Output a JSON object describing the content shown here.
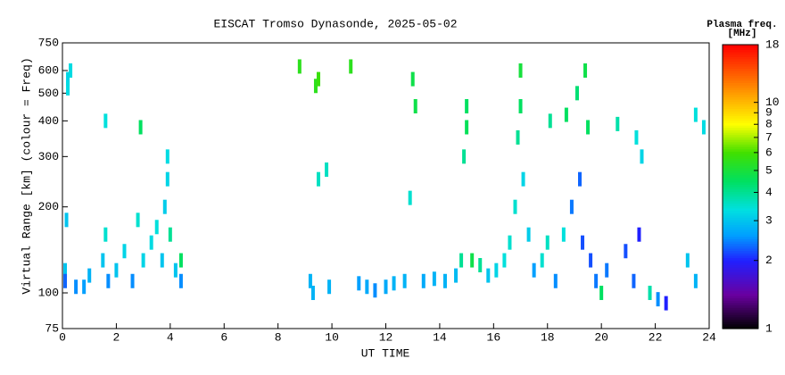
{
  "chart_data": {
    "type": "scatter",
    "title": "EISCAT Tromso Dynasonde, 2025-05-02",
    "x_label": "UT TIME",
    "y_label": "Virtual Range [km] (colour = Freq)",
    "colorbar_title": "Plasma freq.",
    "colorbar_unit": "[MHz]",
    "xlim": [
      0,
      24
    ],
    "xticks": [
      0,
      2,
      4,
      6,
      8,
      10,
      12,
      14,
      16,
      18,
      20,
      22,
      24
    ],
    "ylim": [
      75,
      750
    ],
    "yticks": [
      75,
      100,
      200,
      300,
      400,
      500,
      600,
      750
    ],
    "y_log": true,
    "clim": [
      1,
      18
    ],
    "cticks": [
      1,
      2,
      3,
      4,
      5,
      6,
      7,
      8,
      9,
      10,
      18
    ],
    "c_log": true,
    "x": [
      0.1,
      0.1,
      0.15,
      0.2,
      0.2,
      0.3,
      0.5,
      0.8,
      1.0,
      1.5,
      1.6,
      1.6,
      1.7,
      2.0,
      2.3,
      2.6,
      2.8,
      2.9,
      3.0,
      3.3,
      3.5,
      3.7,
      3.8,
      3.9,
      3.9,
      4.0,
      4.2,
      4.4,
      4.4,
      8.8,
      9.2,
      9.3,
      9.4,
      9.5,
      9.5,
      9.8,
      9.9,
      10.7,
      11.0,
      11.3,
      11.6,
      12.0,
      12.3,
      12.7,
      13.0,
      13.1,
      12.9,
      13.4,
      13.8,
      14.2,
      14.6,
      14.8,
      14.9,
      15.0,
      15.0,
      15.2,
      15.5,
      15.8,
      16.1,
      16.4,
      16.6,
      16.8,
      16.9,
      17.0,
      17.0,
      17.1,
      17.3,
      17.5,
      17.8,
      18.0,
      18.1,
      18.3,
      18.6,
      18.7,
      18.9,
      19.1,
      19.2,
      19.3,
      19.4,
      19.5,
      19.6,
      19.8,
      20.0,
      20.2,
      20.6,
      20.9,
      21.2,
      21.3,
      21.4,
      21.5,
      21.8,
      22.1,
      22.4,
      23.2,
      23.5,
      23.5,
      23.8
    ],
    "y": [
      120,
      110,
      180,
      560,
      520,
      600,
      105,
      105,
      115,
      130,
      160,
      400,
      110,
      120,
      140,
      110,
      180,
      380,
      130,
      150,
      170,
      130,
      200,
      300,
      250,
      160,
      120,
      110,
      130,
      620,
      110,
      100,
      530,
      560,
      250,
      270,
      105,
      620,
      108,
      105,
      102,
      105,
      108,
      110,
      560,
      450,
      215,
      110,
      112,
      110,
      115,
      130,
      300,
      450,
      380,
      130,
      125,
      115,
      120,
      130,
      150,
      200,
      350,
      450,
      600,
      250,
      160,
      120,
      130,
      150,
      400,
      110,
      160,
      420,
      200,
      500,
      250,
      150,
      600,
      380,
      130,
      110,
      100,
      120,
      390,
      140,
      110,
      350,
      160,
      300,
      100,
      95,
      92,
      130,
      110,
      420,
      380
    ],
    "freq": [
      3,
      2.3,
      3,
      3.2,
      3.3,
      3.3,
      2.5,
      2.6,
      2.8,
      3,
      3.5,
      3.4,
      2.5,
      3,
      3.2,
      2.5,
      3.5,
      4.5,
      3.2,
      3.3,
      3.4,
      3,
      3.1,
      3.3,
      3.2,
      4,
      3,
      2.5,
      4.5,
      5.5,
      2.8,
      2.8,
      5.5,
      5.8,
      3.6,
      3.6,
      2.8,
      5.5,
      2.6,
      2.7,
      2.5,
      2.7,
      2.8,
      2.8,
      4.8,
      4.8,
      3.5,
      2.7,
      2.8,
      2.8,
      2.9,
      4,
      4,
      4.5,
      4.6,
      4.8,
      4,
      3,
      3.2,
      3.4,
      3.5,
      3.5,
      4,
      4.5,
      5,
      3.2,
      3.1,
      2.6,
      3.5,
      3.6,
      4,
      2.5,
      3.4,
      4.5,
      2.4,
      4.3,
      2.3,
      2.2,
      4.8,
      4.5,
      2.2,
      2.4,
      4.5,
      2.4,
      3.8,
      2.2,
      2.3,
      3.4,
      2,
      3.2,
      3.8,
      2.5,
      2,
      3,
      2.8,
      3.4,
      3.3
    ]
  }
}
